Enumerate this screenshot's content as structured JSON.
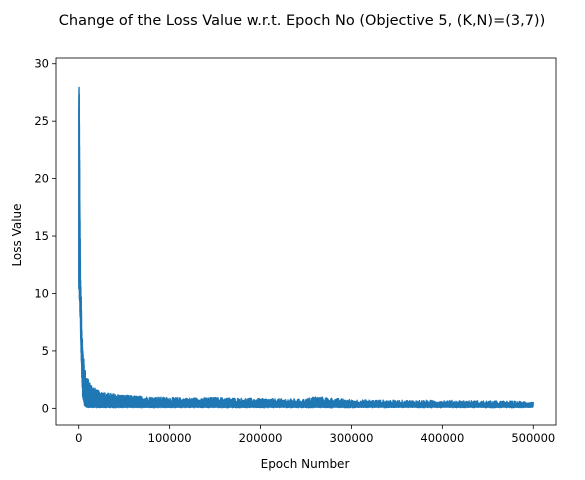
{
  "chart_data": {
    "type": "line",
    "title": "Change of the Loss Value w.r.t. Epoch No (Objective 5, (K,N)=(3,7))",
    "xlabel": "Epoch Number",
    "ylabel": "Loss Value",
    "xlim": [
      -25000,
      525000
    ],
    "ylim": [
      -1.45,
      30.5
    ],
    "xticks": [
      0,
      100000,
      200000,
      300000,
      400000,
      500000
    ],
    "yticks": [
      0,
      5,
      10,
      15,
      20,
      25,
      30
    ],
    "grid": false,
    "legend": "none",
    "series": [
      {
        "color": "#1f77b4",
        "x": [
          0,
          500,
          1000,
          1500,
          2000,
          2500,
          3000,
          3500,
          4000,
          5000,
          6000,
          7000,
          8000,
          10000,
          12000,
          15000,
          20000,
          25000,
          30000,
          40000,
          50000,
          60000,
          80000,
          100000,
          120000,
          150000,
          200000,
          250000,
          258000,
          300000,
          350000,
          400000,
          450000,
          500000
        ],
        "upper": [
          29.0,
          28.5,
          24.0,
          17.0,
          12.5,
          10.0,
          9.5,
          8.0,
          6.5,
          5.0,
          4.0,
          3.5,
          3.0,
          2.6,
          2.3,
          2.0,
          1.6,
          1.45,
          1.35,
          1.25,
          1.15,
          1.1,
          1.0,
          0.95,
          0.9,
          0.95,
          0.85,
          0.8,
          1.05,
          0.75,
          0.7,
          0.7,
          0.65,
          0.6
        ],
        "lower": [
          9.5,
          9.5,
          9.0,
          8.0,
          6.0,
          4.5,
          3.0,
          2.0,
          1.2,
          0.6,
          0.3,
          0.15,
          0.1,
          0.05,
          0.05,
          0.05,
          0.05,
          0.05,
          0.05,
          0.05,
          0.05,
          0.05,
          0.05,
          0.05,
          0.05,
          0.05,
          0.05,
          0.05,
          0.05,
          0.05,
          0.05,
          0.05,
          0.05,
          0.05
        ]
      }
    ]
  }
}
